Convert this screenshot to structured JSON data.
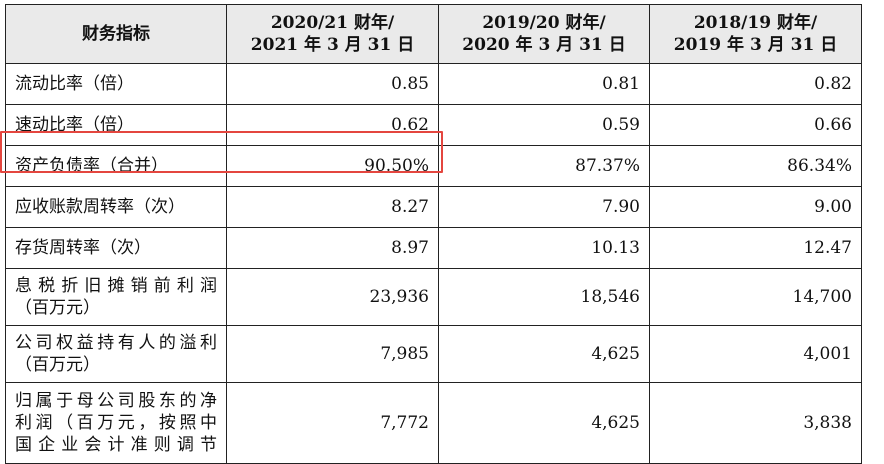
{
  "table": {
    "header": {
      "indicator": "财务指标",
      "columns": [
        {
          "line1": "2020/21 财年/",
          "line2": "2021 年 3 月 31 日"
        },
        {
          "line1": "2019/20 财年/",
          "line2": "2020 年 3 月 31 日"
        },
        {
          "line1": "2018/19 财年/",
          "line2": "2019 年 3 月 31 日"
        }
      ]
    },
    "rows": [
      {
        "label": [
          "流动比率（倍）"
        ],
        "values": [
          "0.85",
          "0.81",
          "0.82"
        ]
      },
      {
        "label": [
          "速动比率（倍）"
        ],
        "values": [
          "0.62",
          "0.59",
          "0.66"
        ]
      },
      {
        "label": [
          "资产负债率（合并）"
        ],
        "values": [
          "90.50%",
          "87.37%",
          "86.34%"
        ]
      },
      {
        "label": [
          "应收账款周转率（次）"
        ],
        "values": [
          "8.27",
          "7.90",
          "9.00"
        ]
      },
      {
        "label": [
          "存货周转率（次）"
        ],
        "values": [
          "8.97",
          "10.13",
          "12.47"
        ]
      },
      {
        "label": [
          "息税折旧摊销前利润",
          "（百万元）"
        ],
        "values": [
          "23,936",
          "18,546",
          "14,700"
        ]
      },
      {
        "label": [
          "公司权益持有人的溢利",
          "（百万元）"
        ],
        "values": [
          "7,985",
          "4,625",
          "4,001"
        ]
      },
      {
        "label": [
          "归属于母公司股东的净",
          "利润（百万元，按照中",
          "国企业会计准则调节"
        ],
        "values": [
          "7,772",
          "4,625",
          "3,838"
        ]
      }
    ]
  },
  "colors": {
    "highlight": "#e4463f",
    "header_bg": "#eaeaea",
    "border": "#222222"
  }
}
